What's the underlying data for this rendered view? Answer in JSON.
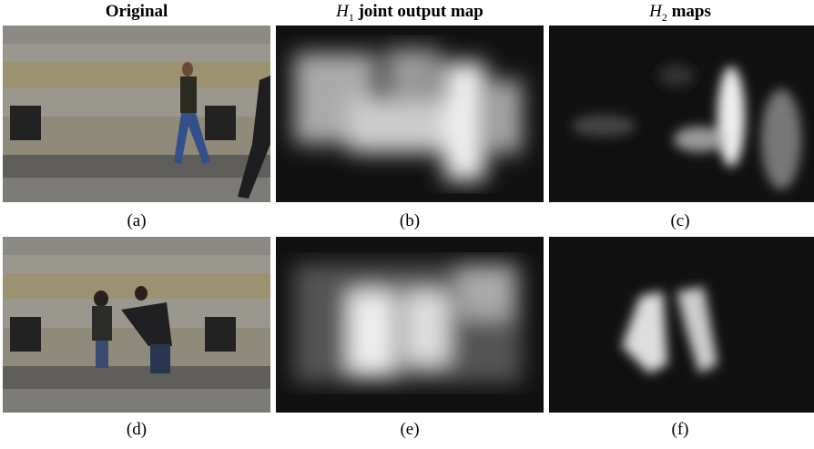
{
  "columns": [
    {
      "title": "Original"
    },
    {
      "title": {
        "symbol": "H",
        "subscript": "1",
        "text": "joint output map"
      }
    },
    {
      "title": {
        "symbol": "H",
        "subscript": "2",
        "text": "maps"
      }
    }
  ],
  "captions": [
    [
      "(a)",
      "(b)",
      "(c)"
    ],
    [
      "(d)",
      "(e)",
      "(f)"
    ]
  ]
}
